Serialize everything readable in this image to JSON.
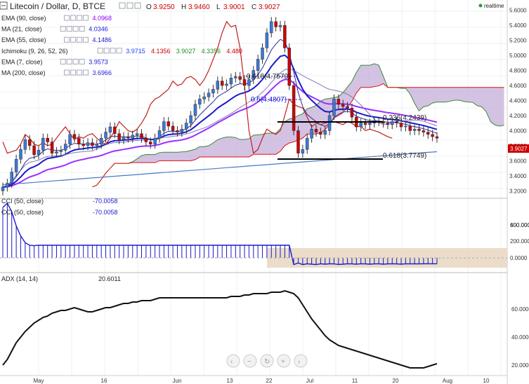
{
  "header": {
    "title": "Litecoin / Dollar, D, BTCE",
    "ohlc": [
      {
        "k": "O",
        "v": "3.9250"
      },
      {
        "k": "H",
        "v": "3.9460"
      },
      {
        "k": "L",
        "v": "3.9001"
      },
      {
        "k": "C",
        "v": "3.9027"
      }
    ],
    "realtime": "realtime"
  },
  "legend": [
    {
      "label": "EMA (90, close)",
      "values": [
        "4.0968"
      ],
      "color": "#8b00ff"
    },
    {
      "label": "MA (21, close)",
      "values": [
        "4.0346"
      ],
      "color": "#2222dd"
    },
    {
      "label": "EMA (55, close)",
      "values": [
        "4.1486"
      ],
      "color": "#1a1acc"
    },
    {
      "label": "Ichimoku (9, 26, 52, 26)",
      "values": [
        "3.9715",
        "4.1356",
        "3.9027",
        "4.3356",
        "4.480"
      ],
      "colors": [
        "#1e40ff",
        "#cc0000",
        "#228b22",
        "#228b22",
        "#cc0000"
      ]
    },
    {
      "label": "EMA (7, close)",
      "values": [
        "3.9573"
      ],
      "color": "#2222dd"
    },
    {
      "label": "MA (200, close)",
      "values": [
        "3.6966"
      ],
      "color": "#2222dd"
    }
  ],
  "price_axis": {
    "ticks": [
      "5.6000",
      "5.4000",
      "5.2000",
      "5.0000",
      "4.8000",
      "4.6000",
      "4.4000",
      "4.2000",
      "4.0000",
      "3.8000",
      "3.6000",
      "3.4000",
      "3.2000"
    ],
    "current": "3.9027"
  },
  "fib": [
    {
      "label": "0.618(4.7570)"
    },
    {
      "label": "0.5(4.4807)"
    },
    {
      "label": "0.236(4.2439)"
    },
    {
      "label": "0.618(3.7749)"
    }
  ],
  "cci1": {
    "label": "CCI (50, close)",
    "value": "-70.0058"
  },
  "cci2": {
    "label": "CCI (50, close)",
    "value": "-70.0058"
  },
  "cci_axis": [
    "600.0000",
    "400.0000",
    "200.0000",
    "0.0000"
  ],
  "adx": {
    "label": "ADX (14, 14)",
    "value": "20.6011"
  },
  "adx_axis": [
    "60.0000",
    "40.0000",
    "20.0000"
  ],
  "time_axis": [
    "May",
    "16",
    "Jun",
    "13",
    "22",
    "Jul",
    "11",
    "20",
    "Aug",
    "10"
  ],
  "colors": {
    "bull": "#3c78d8",
    "bear": "#cc0000",
    "cloud": "#c9b3dc",
    "cci_band": "#e7d7bf",
    "accent_text": "#1a1acc"
  },
  "chart_data": {
    "type": "candlestick",
    "title": "Litecoin / Dollar, D, BTCE",
    "x_ticks": [
      "May",
      "16",
      "Jun",
      "13",
      "22",
      "Jul",
      "11",
      "20",
      "Aug",
      "10"
    ],
    "ylim": [
      3.1,
      5.7
    ],
    "close": [
      3.25,
      3.3,
      3.45,
      3.62,
      3.75,
      3.88,
      3.8,
      3.68,
      3.74,
      3.9,
      3.85,
      3.7,
      3.72,
      3.74,
      3.82,
      3.95,
      3.9,
      3.82,
      3.8,
      3.84,
      3.8,
      3.82,
      3.9,
      3.98,
      4.05,
      3.96,
      3.88,
      3.92,
      3.9,
      3.94,
      3.96,
      3.9,
      3.85,
      3.82,
      3.9,
      4.0,
      4.12,
      4.06,
      4.0,
      3.98,
      4.02,
      4.1,
      4.2,
      4.35,
      4.42,
      4.45,
      4.5,
      4.55,
      4.66,
      4.6,
      4.62,
      4.7,
      4.72,
      4.68,
      4.6,
      4.68,
      4.8,
      4.95,
      5.1,
      5.3,
      5.45,
      5.38,
      5.4,
      5.1,
      4.6,
      4.0,
      3.7,
      3.75,
      3.9,
      4.02,
      3.98,
      3.95,
      4.0,
      4.2,
      4.42,
      4.35,
      4.32,
      4.3,
      4.18,
      4.05,
      4.1,
      4.08,
      4.1,
      4.12,
      4.12,
      4.1,
      4.08,
      4.12,
      4.1,
      4.05,
      4.06,
      4.0,
      4.02,
      4.0,
      3.98,
      3.95,
      3.92,
      3.9
    ],
    "cci": [
      600,
      650,
      550,
      380,
      260,
      180,
      150,
      145,
      150,
      150,
      150,
      150,
      150,
      150,
      150,
      150,
      150,
      150,
      150,
      150,
      150,
      150,
      150,
      150,
      150,
      150,
      150,
      150,
      150,
      150,
      150,
      150,
      150,
      150,
      150,
      150,
      150,
      150,
      150,
      150,
      150,
      150,
      150,
      150,
      150,
      150,
      150,
      150,
      150,
      150,
      150,
      150,
      150,
      150,
      150,
      150,
      150,
      150,
      150,
      150,
      150,
      150,
      150,
      150,
      150,
      -80,
      -60,
      -80,
      -70,
      -75,
      -80,
      -70,
      -75,
      -70,
      -72,
      -78,
      -75,
      -70,
      -72,
      -75,
      -70,
      -72,
      -75,
      -72,
      -70,
      -75,
      -72,
      -70,
      -72,
      -75,
      -70,
      -72,
      -70,
      -72,
      -70,
      -70,
      -70,
      -70
    ],
    "cci_axis": [
      0,
      200,
      400,
      600
    ],
    "adx": [
      20,
      24,
      30,
      36,
      40,
      44,
      47,
      50,
      52,
      54,
      55,
      57,
      58,
      59,
      59,
      60,
      61,
      60,
      59,
      58,
      58,
      59,
      60,
      61,
      61,
      62,
      63,
      64,
      64,
      65,
      65,
      66,
      66,
      66,
      67,
      68,
      68,
      68,
      68,
      68,
      68,
      68,
      68,
      68,
      68,
      68,
      68,
      68,
      68,
      68,
      68,
      69,
      69,
      69,
      70,
      70,
      71,
      71,
      71,
      71,
      72,
      72,
      72,
      73,
      72,
      71,
      68,
      63,
      58,
      53,
      49,
      45,
      41,
      38,
      36,
      34,
      33,
      32,
      31,
      30,
      29,
      28,
      27,
      26,
      25,
      24,
      23,
      22,
      21,
      20,
      19,
      18,
      18,
      18,
      18,
      19,
      20,
      21
    ],
    "adx_axis": [
      20,
      40,
      60
    ]
  }
}
